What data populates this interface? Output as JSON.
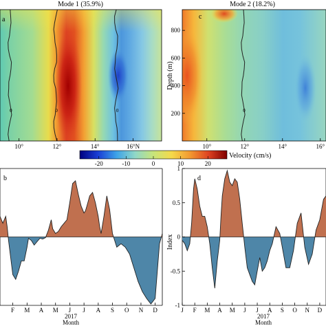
{
  "chart_data": [
    {
      "type": "heatmap",
      "panel": "a",
      "title": "Mode 1 (35.9%)",
      "xlabel": "",
      "ylabel": "",
      "x_ticks": [
        "10°",
        "12°",
        "14°",
        "16°N"
      ],
      "x_tick_values": [
        10,
        12,
        14,
        16
      ],
      "xlim": [
        9.0,
        17.5
      ],
      "ylim": [
        950,
        0
      ],
      "zero_contours_lat": [
        9.5,
        11.9,
        15.1
      ],
      "features": [
        {
          "sign": "positive",
          "lat": 12.7,
          "depth": 600,
          "value": 25
        },
        {
          "sign": "negative",
          "lat": 15.0,
          "depth": 450,
          "value": -18
        }
      ]
    },
    {
      "type": "heatmap",
      "panel": "c",
      "title": "Mode 2 (18.2%)",
      "xlabel": "",
      "ylabel": "Depth (m)",
      "x_ticks": [
        "10°",
        "12°",
        "14°",
        "16°"
      ],
      "x_tick_values": [
        10,
        12,
        14,
        16
      ],
      "y_ticks": [
        "200",
        "400",
        "600",
        "800"
      ],
      "y_tick_values": [
        200,
        400,
        600,
        800
      ],
      "xlim": [
        8.7,
        16.3
      ],
      "ylim": [
        950,
        0
      ],
      "zero_contours_lat": [
        11.9
      ],
      "features": [
        {
          "sign": "positive",
          "lat": 9.0,
          "depth": 400,
          "value": 20
        },
        {
          "sign": "positive",
          "lat": 11.0,
          "depth": 60,
          "value": 18
        },
        {
          "sign": "negative",
          "lat": 15.0,
          "depth": 650,
          "value": -15
        }
      ]
    },
    {
      "type": "colorbar",
      "label": "Velocity (cm/s)",
      "ticks": [
        "-20",
        "-10",
        "0",
        "10",
        "20"
      ],
      "tick_values": [
        -20,
        -10,
        0,
        10,
        20
      ],
      "range": [
        -27,
        27
      ],
      "colors": [
        "#00007f",
        "#1a3fd6",
        "#3da3e8",
        "#8fd7c8",
        "#c7e57a",
        "#f5d94a",
        "#f29830",
        "#de4221",
        "#7f0000"
      ]
    },
    {
      "type": "area",
      "panel": "b",
      "title": "",
      "xlabel": "Month",
      "year_label": "2017",
      "ylabel": "",
      "categories": [
        "F",
        "M",
        "A",
        "M",
        "J",
        "J",
        "A",
        "S",
        "O",
        "N",
        "D"
      ],
      "x_tick_values": [
        2,
        3,
        4,
        5,
        6,
        7,
        8,
        9,
        10,
        11,
        12
      ],
      "xlim": [
        1.1,
        12.5
      ],
      "ylim": [
        -1,
        1
      ],
      "positive_color": "#c0704f",
      "negative_color": "#4e86a8",
      "series": [
        {
          "x": [
            1.1,
            1.3,
            1.5,
            1.6,
            1.7,
            1.85,
            2.0,
            2.2,
            2.4,
            2.6,
            2.8,
            3.0,
            3.1,
            3.3,
            3.5,
            3.7,
            3.9,
            4.1,
            4.3,
            4.5,
            4.7,
            4.8,
            5.0,
            5.2,
            5.4,
            5.6,
            5.8,
            6.0,
            6.2,
            6.4,
            6.6,
            6.8,
            7.0,
            7.1,
            7.2,
            7.4,
            7.6,
            7.8,
            8.0,
            8.1,
            8.2,
            8.4,
            8.6,
            8.8,
            9.0,
            9.3,
            9.6,
            9.9,
            10.2,
            10.5,
            10.8,
            11.1,
            11.4,
            11.7,
            12.0,
            12.3,
            12.5
          ],
          "values": [
            0.3,
            0.2,
            0.3,
            0.15,
            -0.05,
            -0.3,
            -0.55,
            -0.62,
            -0.5,
            -0.35,
            -0.35,
            -0.15,
            -0.02,
            -0.05,
            -0.12,
            -0.07,
            -0.02,
            -0.03,
            -0.01,
            0.1,
            0.25,
            0.12,
            0.05,
            0.08,
            0.15,
            0.2,
            0.25,
            0.5,
            0.78,
            0.82,
            0.62,
            0.45,
            0.35,
            0.38,
            0.45,
            0.6,
            0.65,
            0.5,
            0.3,
            0.15,
            0.05,
            0.3,
            0.6,
            0.4,
            0.05,
            -0.15,
            -0.1,
            -0.15,
            -0.25,
            -0.45,
            -0.65,
            -0.8,
            -0.9,
            -0.98,
            -0.9,
            -0.1,
            0.05
          ]
        }
      ]
    },
    {
      "type": "area",
      "panel": "d",
      "title": "",
      "xlabel": "Month",
      "year_label": "2017",
      "ylabel": "Index",
      "categories": [
        "J",
        "F",
        "M",
        "A",
        "M",
        "J",
        "J",
        "A",
        "S",
        "O",
        "N",
        "D"
      ],
      "x_tick_values": [
        1,
        2,
        3,
        4,
        5,
        6,
        7,
        8,
        9,
        10,
        11,
        12
      ],
      "y_ticks": [
        "-1",
        "-0.5",
        "0",
        "0.5",
        "1"
      ],
      "y_tick_values": [
        -1,
        -0.5,
        0,
        0.5,
        1
      ],
      "xlim": [
        1,
        12.5
      ],
      "ylim": [
        -1,
        1
      ],
      "positive_color": "#c0704f",
      "negative_color": "#4e86a8",
      "series": [
        {
          "x": [
            1.0,
            1.2,
            1.4,
            1.6,
            1.75,
            1.9,
            2.0,
            2.2,
            2.4,
            2.6,
            2.8,
            3.0,
            3.2,
            3.4,
            3.6,
            3.8,
            4.0,
            4.1,
            4.2,
            4.4,
            4.6,
            4.8,
            5.0,
            5.2,
            5.4,
            5.6,
            5.8,
            6.0,
            6.2,
            6.4,
            6.6,
            6.8,
            7.0,
            7.2,
            7.4,
            7.6,
            7.8,
            8.0,
            8.2,
            8.5,
            8.8,
            9.0,
            9.3,
            9.6,
            9.9,
            10.2,
            10.5,
            10.8,
            11.1,
            11.4,
            11.7,
            12.0,
            12.3,
            12.5
          ],
          "values": [
            -0.05,
            -0.1,
            -0.2,
            -0.1,
            0.2,
            0.7,
            0.85,
            0.7,
            0.45,
            0.3,
            0.3,
            0.15,
            -0.1,
            -0.45,
            -0.75,
            -0.35,
            -0.05,
            0.3,
            0.6,
            0.85,
            0.97,
            0.8,
            0.75,
            0.85,
            0.8,
            0.55,
            0.2,
            -0.15,
            -0.45,
            -0.55,
            -0.65,
            -0.7,
            -0.5,
            -0.3,
            -0.5,
            -0.45,
            -0.35,
            -0.2,
            -0.1,
            0.15,
            0.05,
            -0.15,
            -0.45,
            -0.45,
            -0.2,
            0.2,
            0.35,
            -0.15,
            -0.4,
            -0.25,
            0.1,
            0.25,
            0.55,
            0.6
          ]
        }
      ]
    }
  ]
}
